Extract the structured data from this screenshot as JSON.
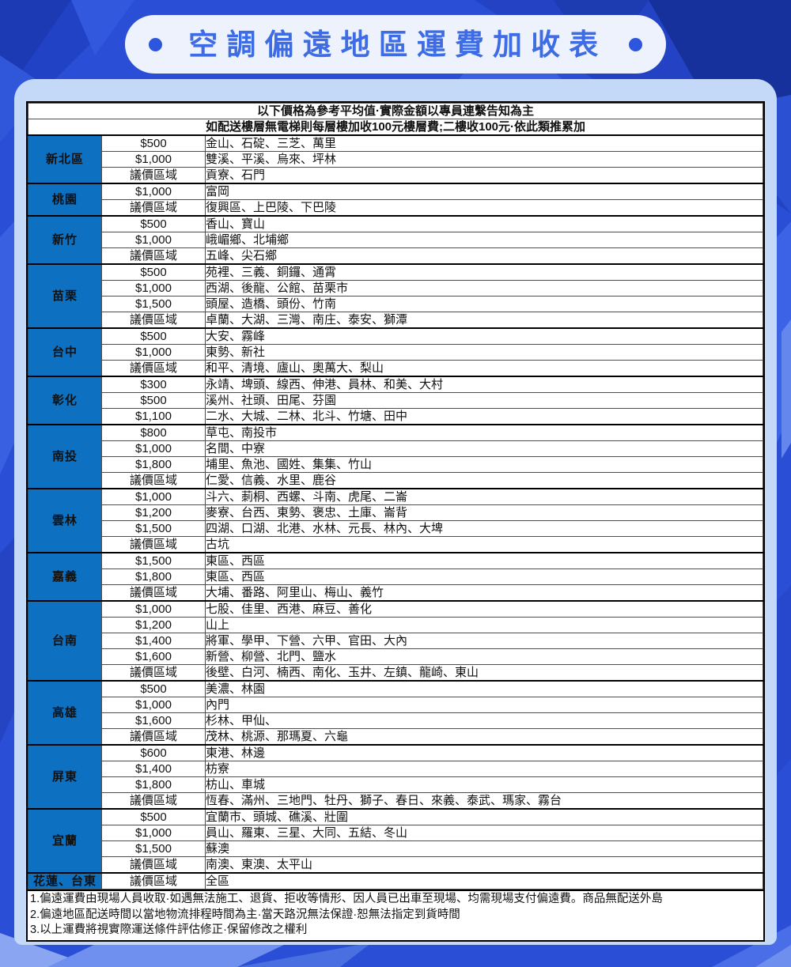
{
  "header": {
    "title": "空調偏遠地區運費加收表"
  },
  "table": {
    "subtitle": "以下價格為參考平均值·實際金額以專員連繫告知為主",
    "floor_notice": "如配送樓層無電梯則每層樓加收100元樓層費;二樓收100元·依此類推累加",
    "negotiable_label": "議價區域"
  },
  "regions": [
    {
      "name": "新北區",
      "tiers": [
        {
          "price": "$500",
          "areas": "金山、石碇、三芝、萬里"
        },
        {
          "price": "$1,000",
          "areas": "雙溪、平溪、烏來、坪林"
        },
        {
          "price": "議價區域",
          "areas": "貢寮、石門"
        }
      ]
    },
    {
      "name": "桃園",
      "tiers": [
        {
          "price": "$1,000",
          "areas": "富岡"
        },
        {
          "price": "議價區域",
          "areas": "復興區、上巴陵、下巴陵"
        }
      ]
    },
    {
      "name": "新竹",
      "tiers": [
        {
          "price": "$500",
          "areas": "香山、寶山"
        },
        {
          "price": "$1,000",
          "areas": "峨嵋鄉、北埔鄉"
        },
        {
          "price": "議價區域",
          "areas": "五峰、尖石鄉"
        }
      ]
    },
    {
      "name": "苗栗",
      "tiers": [
        {
          "price": "$500",
          "areas": "苑裡、三義、銅鑼、通霄"
        },
        {
          "price": "$1,000",
          "areas": "西湖、後龍、公館、苗栗市"
        },
        {
          "price": "$1,500",
          "areas": "頭屋、造橋、頭份、竹南"
        },
        {
          "price": "議價區域",
          "areas": "卓蘭、大湖、三灣、南庄、泰安、獅潭"
        }
      ]
    },
    {
      "name": "台中",
      "tiers": [
        {
          "price": "$500",
          "areas": "大安、霧峰"
        },
        {
          "price": "$1,000",
          "areas": "東勢、新社"
        },
        {
          "price": "議價區域",
          "areas": "和平、清境、廬山、奧萬大、梨山"
        }
      ]
    },
    {
      "name": "彰化",
      "tiers": [
        {
          "price": "$300",
          "areas": "永靖、埤頭、線西、伸港、員林、和美、大村"
        },
        {
          "price": "$500",
          "areas": "溪州、社頭、田尾、芬園"
        },
        {
          "price": "$1,100",
          "areas": "二水、大城、二林、北斗、竹塘、田中"
        }
      ]
    },
    {
      "name": "南投",
      "tiers": [
        {
          "price": "$800",
          "areas": "草屯、南投市"
        },
        {
          "price": "$1,000",
          "areas": "名間、中寮"
        },
        {
          "price": "$1,800",
          "areas": "埔里、魚池、國姓、集集、竹山"
        },
        {
          "price": "議價區域",
          "areas": "仁愛、信義、水里、鹿谷"
        }
      ]
    },
    {
      "name": "雲林",
      "tiers": [
        {
          "price": "$1,000",
          "areas": "斗六、莿桐、西螺、斗南、虎尾、二崙"
        },
        {
          "price": "$1,200",
          "areas": "麥寮、台西、東勢、褒忠、土庫、崙背"
        },
        {
          "price": "$1,500",
          "areas": "四湖、口湖、北港、水林、元長、林內、大埤"
        },
        {
          "price": "議價區域",
          "areas": "古坑"
        }
      ]
    },
    {
      "name": "嘉義",
      "tiers": [
        {
          "price": "$1,500",
          "areas": "東區、西區"
        },
        {
          "price": "$1,800",
          "areas": "東區、西區"
        },
        {
          "price": "議價區域",
          "areas": "大埔、番路、阿里山、梅山、義竹"
        }
      ]
    },
    {
      "name": "台南",
      "tiers": [
        {
          "price": "$1,000",
          "areas": "七股、佳里、西港、麻豆、善化"
        },
        {
          "price": "$1,200",
          "areas": "山上"
        },
        {
          "price": "$1,400",
          "areas": "將軍、學甲、下營、六甲、官田、大內"
        },
        {
          "price": "$1,600",
          "areas": "新營、柳營、北門、鹽水"
        },
        {
          "price": "議價區域",
          "areas": "後壁、白河、楠西、南化、玉井、左鎮、龍崎、東山"
        }
      ]
    },
    {
      "name": "高雄",
      "tiers": [
        {
          "price": "$500",
          "areas": "美濃、林園"
        },
        {
          "price": "$1,000",
          "areas": "內門"
        },
        {
          "price": "$1,600",
          "areas": "杉林、甲仙、"
        },
        {
          "price": "議價區域",
          "areas": "茂林、桃源、那瑪夏、六龜"
        }
      ]
    },
    {
      "name": "屏東",
      "tiers": [
        {
          "price": "$600",
          "areas": "東港、林邊"
        },
        {
          "price": "$1,400",
          "areas": "枋寮"
        },
        {
          "price": "$1,800",
          "areas": "枋山、車城"
        },
        {
          "price": "議價區域",
          "areas": "恆春、滿州、三地門、牡丹、獅子、春日、來義、泰武、瑪家、霧台"
        }
      ]
    },
    {
      "name": "宜蘭",
      "tiers": [
        {
          "price": "$500",
          "areas": "宜蘭市、頭城、礁溪、壯圍"
        },
        {
          "price": "$1,000",
          "areas": "員山、羅東、三星、大同、五結、冬山"
        },
        {
          "price": "$1,500",
          "areas": "蘇澳"
        },
        {
          "price": "議價區域",
          "areas": "南澳、東澳、太平山"
        }
      ]
    },
    {
      "name": "花蓮、台東",
      "tiers": [
        {
          "price": "議價區域",
          "areas": "全區"
        }
      ]
    }
  ],
  "notes": [
    "1.偏遠運費由現場人員收取·如遇無法施工、退貨、拒收等情形、因人員已出車至現場、均需現場支付偏遠費。商品無配送外島",
    "2.偏遠地區配送時間以當地物流排程時間為主·當天路況無法保證·恕無法指定到貨時間",
    "3.以上運費將視實際運送條件評估修正·保留修改之權利"
  ],
  "colors": {
    "background_blue": "#2a4ed5",
    "card_blue": "#c3d9f7",
    "pill_white": "#edf2fc",
    "title_blue": "#3d6ce4",
    "region_cell_blue": "#0d70c0",
    "notice_red": "#e80000"
  }
}
